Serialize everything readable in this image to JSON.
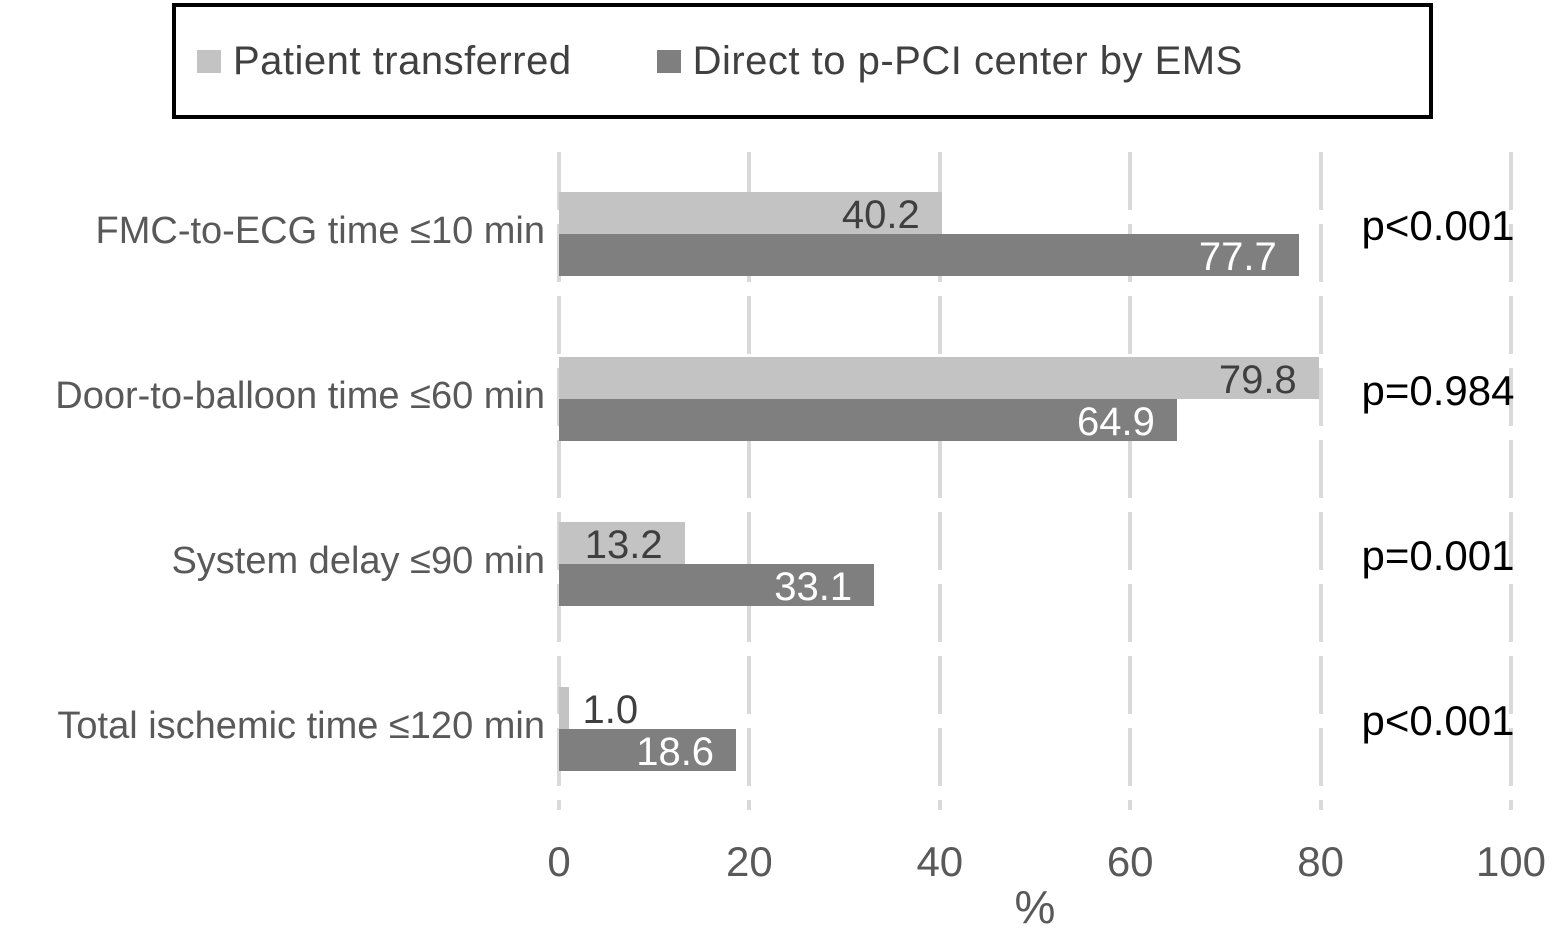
{
  "chart_data": {
    "type": "bar",
    "orientation": "horizontal",
    "title": "",
    "xlabel": "%",
    "xlim": [
      0,
      100
    ],
    "xticks": [
      0,
      20,
      40,
      60,
      80,
      100
    ],
    "grid": "vertical-dashed",
    "legend_position": "top",
    "categories": [
      "FMC-to-ECG time ≤10 min",
      "Door-to-balloon time ≤60 min",
      "System delay ≤90 min",
      "Total ischemic time ≤120 min"
    ],
    "series": [
      {
        "name": "Patient transferred",
        "color": "#c3c3c3",
        "value_label_color": "#3f3f3f",
        "values": [
          40.2,
          79.8,
          13.2,
          1.0
        ]
      },
      {
        "name": "Direct to p-PCI center by EMS",
        "color": "#7f7f7f",
        "value_label_color": "#ffffff",
        "values": [
          77.7,
          64.9,
          33.1,
          18.6
        ]
      }
    ],
    "p_values": [
      "p<0.001",
      "p=0.984",
      "p=0.001",
      "p<0.001"
    ],
    "colors": {
      "gridline": "#d9d9d9",
      "axis_text": "#595959",
      "category_text": "#595959",
      "p_value_text": "#000000",
      "legend_text": "#404040",
      "legend_border": "#000000",
      "background": "#ffffff"
    }
  }
}
